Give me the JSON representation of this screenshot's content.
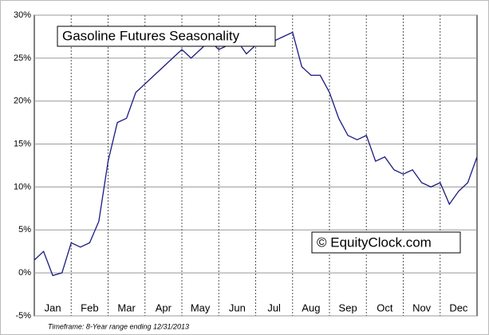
{
  "chart_data": {
    "type": "line",
    "title": "Gasoline Futures Seasonality",
    "annotation": "© EquityClock.com",
    "footnote": "Timeframe: 8-Year range ending 12/31/2013",
    "categories": [
      "Jan",
      "Feb",
      "Mar",
      "Apr",
      "May",
      "Jun",
      "Jul",
      "Aug",
      "Sep",
      "Oct",
      "Nov",
      "Dec"
    ],
    "x": [
      0,
      0.25,
      0.5,
      0.75,
      1,
      1.25,
      1.5,
      1.75,
      2,
      2.25,
      2.5,
      2.75,
      3,
      3.25,
      3.5,
      3.75,
      4,
      4.25,
      4.5,
      4.75,
      5,
      5.25,
      5.5,
      5.75,
      6,
      6.25,
      6.5,
      6.75,
      7,
      7.25,
      7.5,
      7.75,
      8,
      8.25,
      8.5,
      8.75,
      9,
      9.25,
      9.5,
      9.75,
      10,
      10.25,
      10.5,
      10.75,
      11,
      11.25,
      11.5,
      11.75,
      12
    ],
    "xlim": [
      0,
      12
    ],
    "series": [
      {
        "color": "#1a1a80",
        "values": [
          1.5,
          2.5,
          -0.3,
          0,
          3.5,
          3,
          3.5,
          6,
          13,
          17.5,
          18,
          21,
          22,
          23,
          24,
          25,
          26,
          25,
          26,
          27,
          26,
          26.5,
          27,
          25.5,
          26.5,
          27,
          27,
          27.5,
          28,
          24,
          23,
          23,
          21,
          18,
          16,
          15.5,
          16,
          13,
          13.5,
          12,
          11.5,
          12,
          10.5,
          10,
          10.5,
          8,
          9.5,
          10.5,
          13.5
        ]
      }
    ],
    "ylim": [
      -5,
      30
    ],
    "yticks": [
      {
        "value": -5,
        "label": "-5%"
      },
      {
        "value": 0,
        "label": "0%"
      },
      {
        "value": 5,
        "label": "5%"
      },
      {
        "value": 10,
        "label": "10%"
      },
      {
        "value": 15,
        "label": "15%"
      },
      {
        "value": 20,
        "label": "20%"
      },
      {
        "value": 25,
        "label": "25%"
      },
      {
        "value": 30,
        "label": "30%"
      }
    ],
    "grid": true
  }
}
